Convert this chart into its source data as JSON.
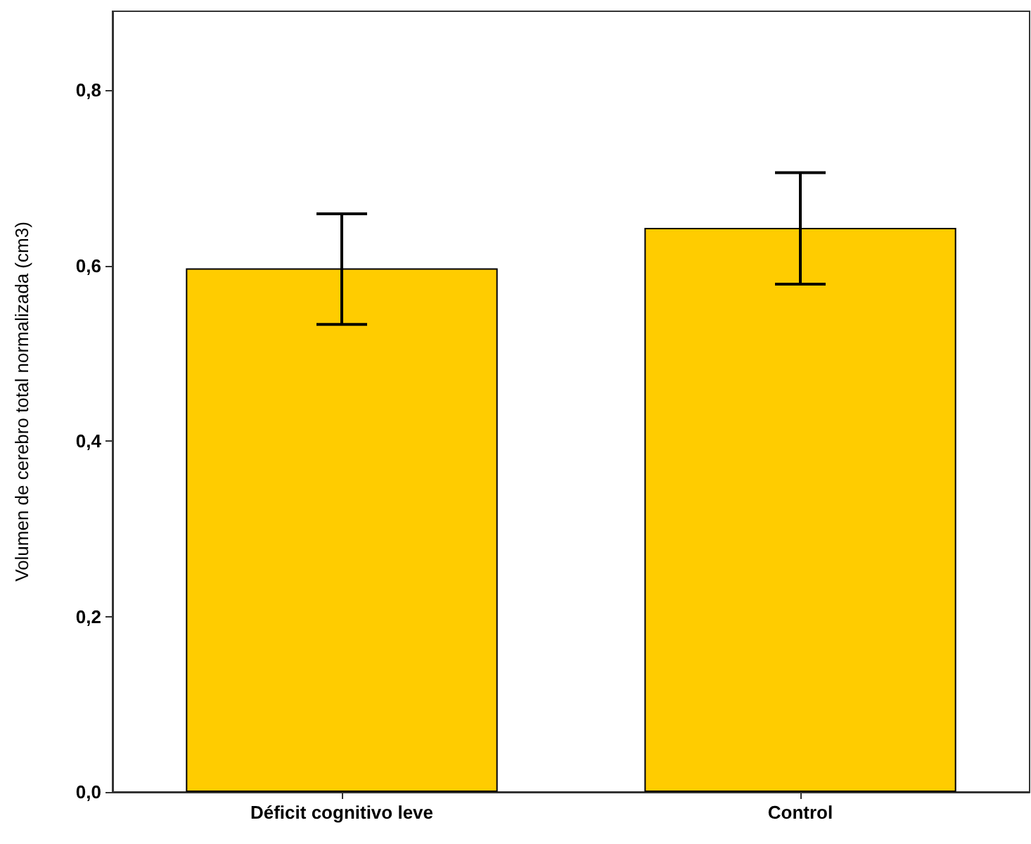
{
  "chart_data": {
    "type": "bar",
    "ylabel": "Volumen de cerebro total normalizada (cm3)",
    "categories": [
      "Déficit cognitivo leve",
      "Control"
    ],
    "series": [
      {
        "color": "#ffcc00",
        "values": [
          0.597,
          0.643
        ],
        "errors": [
          [
            0.533,
            0.659
          ],
          [
            0.579,
            0.706
          ]
        ]
      }
    ],
    "ylim": [
      0,
      0.89
    ],
    "yticks": [
      {
        "value": 0,
        "label": "0,0"
      },
      {
        "value": 0.2,
        "label": "0,2"
      },
      {
        "value": 0.4,
        "label": "0,4"
      },
      {
        "value": 0.6,
        "label": "0,6"
      },
      {
        "value": 0.8,
        "label": "0,8"
      }
    ]
  }
}
